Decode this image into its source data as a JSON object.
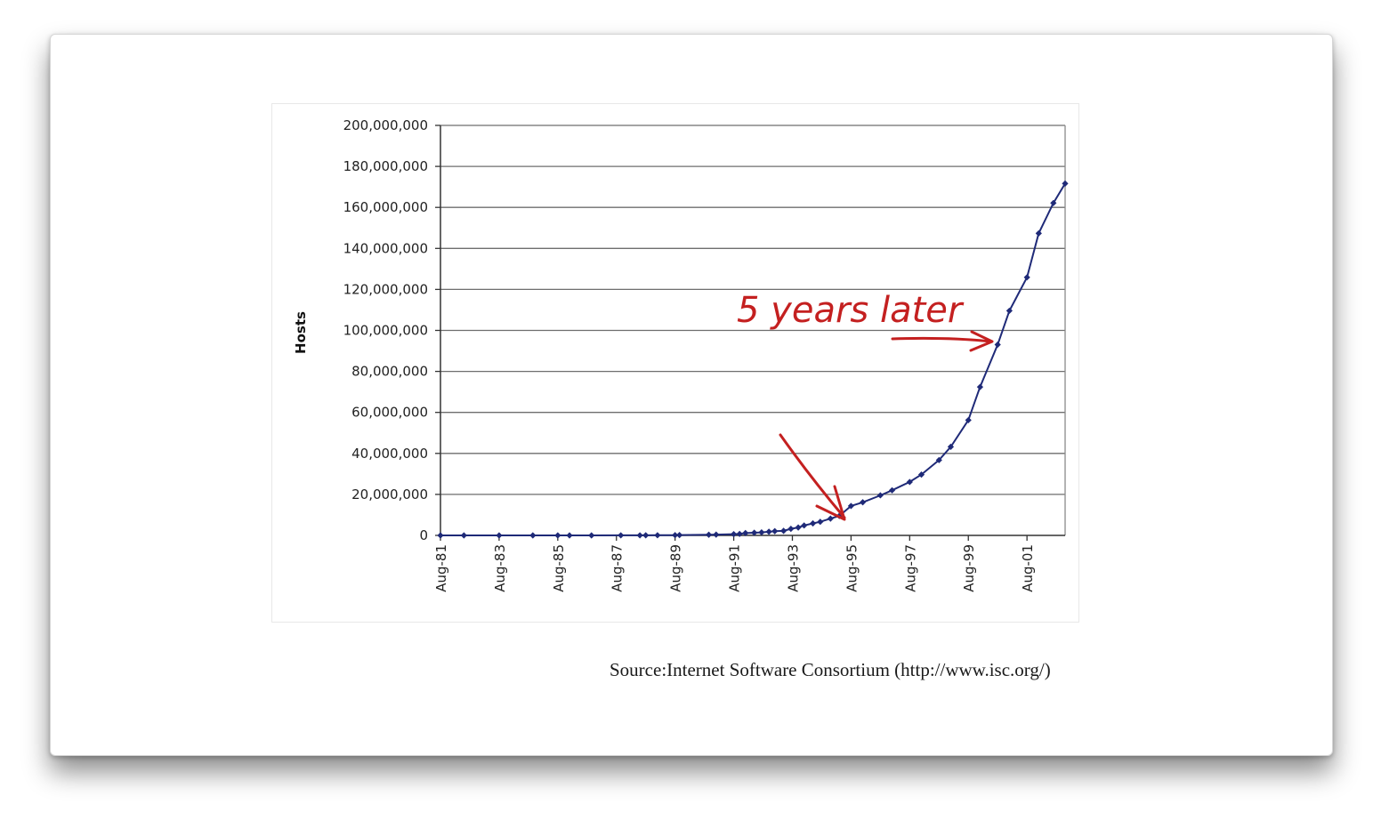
{
  "chart_data": {
    "type": "line",
    "title": "",
    "ylabel": "Hosts",
    "xlabel": "",
    "ylim": [
      0,
      200000000
    ],
    "y_ticks": [
      0,
      20000000,
      40000000,
      60000000,
      80000000,
      100000000,
      120000000,
      140000000,
      160000000,
      180000000,
      200000000
    ],
    "y_tick_labels": [
      "0",
      "20,000,000",
      "40,000,000",
      "60,000,000",
      "80,000,000",
      "100,000,000",
      "120,000,000",
      "140,000,000",
      "160,000,000",
      "180,000,000",
      "200,000,000"
    ],
    "x_ticks": [
      1981.6,
      1983.6,
      1985.6,
      1987.6,
      1989.6,
      1991.6,
      1993.6,
      1995.6,
      1997.6,
      1999.6,
      2001.6
    ],
    "x_tick_labels": [
      "Aug-81",
      "Aug-83",
      "Aug-85",
      "Aug-87",
      "Aug-89",
      "Aug-91",
      "Aug-93",
      "Aug-95",
      "Aug-97",
      "Aug-99",
      "Aug-01"
    ],
    "xlim": [
      1981.6,
      2002.9
    ],
    "grid": "horizontal",
    "series": [
      {
        "color": "#1f2a78",
        "x": [
          1981.6,
          1982.4,
          1983.6,
          1984.75,
          1985.6,
          1986.0,
          1986.75,
          1987.75,
          1988.4,
          1988.6,
          1989.0,
          1989.6,
          1989.75,
          1990.75,
          1991.0,
          1991.6,
          1991.8,
          1992.0,
          1992.3,
          1992.55,
          1992.8,
          1993.0,
          1993.3,
          1993.55,
          1993.8,
          1994.0,
          1994.3,
          1994.55,
          1994.9,
          1995.2,
          1995.6,
          1996.0,
          1996.6,
          1997.0,
          1997.6,
          1998.0,
          1998.6,
          1999.0,
          1999.6,
          2000.0,
          2000.6,
          2001.0,
          2001.6,
          2002.0,
          2002.5,
          2002.9
        ],
        "y": [
          213,
          235,
          562,
          1024,
          1961,
          2308,
          5089,
          28174,
          33000,
          56000,
          80000,
          130000,
          159000,
          313000,
          376000,
          617000,
          727000,
          1136000,
          1313000,
          1486000,
          1776000,
          2056000,
          2217000,
          3212000,
          3864000,
          4852000,
          5846000,
          6642000,
          8200000,
          9500000,
          14352000,
          16146000,
          19540000,
          22000000,
          26053000,
          29670000,
          36739000,
          43230000,
          56218000,
          72398000,
          93047000,
          109574000,
          125888000,
          147345000,
          162128000,
          171638000
        ]
      }
    ],
    "annotations": [
      {
        "type": "handwritten-text",
        "text": "5 years later",
        "color": "#c42020"
      },
      {
        "type": "arrow",
        "points_to": "Aug-95",
        "color": "#c42020"
      },
      {
        "type": "arrow",
        "points_to": "Aug-00",
        "color": "#c42020"
      }
    ]
  },
  "source_note": "Source:Internet Software Consortium (http://www.isc.org/)"
}
